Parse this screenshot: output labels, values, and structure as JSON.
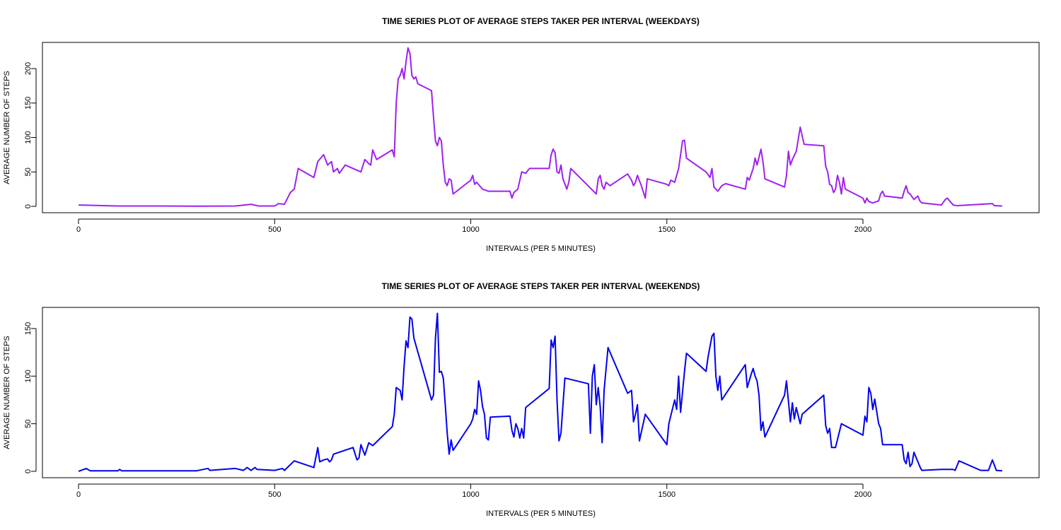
{
  "chart_data": [
    {
      "type": "line",
      "title": "TIME SERIES PLOT OF AVERAGE STEPS TAKER PER INTERVAL (WEEKDAYS)",
      "xlabel": "INTERVALS (PER 5 MINUTES)",
      "ylabel": "AVERAGE NUMBER OF STEPS",
      "color": "#a020f0",
      "x": [
        0,
        100,
        200,
        300,
        400,
        440,
        460,
        500,
        510,
        525,
        540,
        550,
        560,
        600,
        610,
        625,
        635,
        645,
        650,
        660,
        665,
        680,
        700,
        720,
        730,
        740,
        745,
        750,
        760,
        800,
        805,
        810,
        815,
        820,
        825,
        830,
        835,
        840,
        845,
        850,
        855,
        860,
        865,
        900,
        905,
        910,
        915,
        920,
        925,
        930,
        935,
        940,
        945,
        950,
        955,
        1000,
        1005,
        1010,
        1015,
        1030,
        1045,
        1100,
        1105,
        1110,
        1120,
        1130,
        1140,
        1150,
        1200,
        1205,
        1210,
        1215,
        1220,
        1225,
        1230,
        1235,
        1245,
        1250,
        1255,
        1320,
        1325,
        1330,
        1335,
        1340,
        1345,
        1355,
        1400,
        1410,
        1415,
        1420,
        1425,
        1435,
        1445,
        1450,
        1500,
        1505,
        1510,
        1520,
        1530,
        1540,
        1545,
        1550,
        1600,
        1610,
        1615,
        1620,
        1630,
        1640,
        1650,
        1700,
        1705,
        1710,
        1720,
        1725,
        1730,
        1740,
        1745,
        1750,
        1800,
        1805,
        1810,
        1815,
        1820,
        1830,
        1840,
        1850,
        1900,
        1905,
        1910,
        1915,
        1920,
        1925,
        1930,
        1935,
        1940,
        1945,
        1950,
        1955,
        2000,
        2005,
        2010,
        2015,
        2025,
        2040,
        2045,
        2050,
        2055,
        2100,
        2105,
        2110,
        2115,
        2120,
        2130,
        2140,
        2145,
        2150,
        2200,
        2210,
        2215,
        2230,
        2240,
        2300,
        2330,
        2335,
        2355
      ],
      "values": [
        2,
        0.5,
        0.5,
        0.3,
        0.5,
        3,
        0.5,
        0.5,
        4,
        3,
        20,
        25,
        55,
        42,
        65,
        75,
        60,
        65,
        50,
        55,
        48,
        60,
        55,
        50,
        68,
        62,
        60,
        82,
        68,
        82,
        72,
        150,
        185,
        190,
        200,
        185,
        210,
        230,
        222,
        190,
        185,
        188,
        178,
        168,
        130,
        95,
        88,
        100,
        95,
        60,
        35,
        30,
        40,
        38,
        18,
        38,
        45,
        32,
        35,
        25,
        22,
        22,
        12,
        20,
        25,
        50,
        48,
        55,
        55,
        75,
        83,
        78,
        50,
        48,
        60,
        40,
        25,
        35,
        55,
        18,
        40,
        45,
        30,
        25,
        35,
        30,
        47,
        38,
        30,
        35,
        45,
        30,
        12,
        40,
        32,
        30,
        38,
        35,
        55,
        95,
        96,
        70,
        50,
        42,
        55,
        28,
        22,
        30,
        33,
        25,
        42,
        38,
        55,
        70,
        60,
        83,
        65,
        40,
        28,
        45,
        80,
        60,
        68,
        80,
        115,
        90,
        88,
        58,
        50,
        32,
        30,
        20,
        25,
        45,
        35,
        18,
        42,
        25,
        12,
        5,
        12,
        7,
        5,
        8,
        18,
        22,
        15,
        12,
        22,
        30,
        20,
        18,
        10,
        15,
        8,
        5,
        2,
        10,
        12,
        2,
        1,
        3,
        4,
        1,
        0.5
      ],
      "xlim": [
        -92,
        2449
      ],
      "xticks": [
        0,
        500,
        1000,
        1500,
        2000
      ],
      "ylim": [
        -9.2,
        238
      ],
      "yticks": [
        0,
        50,
        100,
        150,
        200
      ]
    },
    {
      "type": "line",
      "title": "TIME SERIES PLOT OF AVERAGE STEPS TAKER PER INTERVAL (WEEKENDS)",
      "xlabel": "INTERVALS (PER 5 MINUTES)",
      "ylabel": "AVERAGE NUMBER OF STEPS",
      "color": "#0000ee",
      "x": [
        0,
        20,
        30,
        100,
        105,
        110,
        200,
        300,
        330,
        335,
        400,
        420,
        430,
        440,
        450,
        455,
        500,
        520,
        525,
        550,
        600,
        610,
        615,
        625,
        635,
        640,
        645,
        650,
        700,
        710,
        715,
        720,
        730,
        740,
        750,
        800,
        805,
        810,
        820,
        825,
        830,
        835,
        840,
        845,
        850,
        855,
        900,
        905,
        910,
        915,
        920,
        925,
        930,
        935,
        940,
        945,
        950,
        955,
        1000,
        1005,
        1010,
        1015,
        1020,
        1025,
        1030,
        1035,
        1040,
        1045,
        1050,
        1100,
        1105,
        1110,
        1115,
        1120,
        1125,
        1130,
        1135,
        1140,
        1200,
        1205,
        1210,
        1215,
        1220,
        1225,
        1230,
        1240,
        1300,
        1305,
        1310,
        1315,
        1320,
        1325,
        1330,
        1335,
        1340,
        1350,
        1400,
        1410,
        1415,
        1420,
        1425,
        1430,
        1445,
        1500,
        1505,
        1520,
        1525,
        1530,
        1535,
        1545,
        1550,
        1600,
        1605,
        1615,
        1620,
        1625,
        1630,
        1635,
        1640,
        1700,
        1705,
        1715,
        1720,
        1725,
        1730,
        1735,
        1740,
        1745,
        1750,
        1800,
        1805,
        1815,
        1820,
        1825,
        1830,
        1840,
        1845,
        1900,
        1905,
        1910,
        1915,
        1920,
        1930,
        1945,
        2000,
        2005,
        2010,
        2015,
        2020,
        2025,
        2030,
        2040,
        2045,
        2050,
        2100,
        2105,
        2110,
        2115,
        2120,
        2125,
        2130,
        2145,
        2150,
        2200,
        2230,
        2235,
        2245,
        2300,
        2320,
        2330,
        2340,
        2355
      ],
      "values": [
        0,
        3,
        0.5,
        0.5,
        2,
        0.5,
        0.5,
        0.5,
        3,
        1,
        3,
        1,
        4,
        1,
        4,
        2,
        1,
        3,
        1,
        11,
        4,
        25,
        10,
        12,
        13,
        10,
        12,
        18,
        25,
        12,
        14,
        28,
        17,
        30,
        27,
        47,
        60,
        88,
        85,
        75,
        110,
        137,
        130,
        162,
        160,
        140,
        75,
        80,
        140,
        166,
        104,
        105,
        98,
        70,
        40,
        18,
        33,
        22,
        50,
        55,
        65,
        60,
        95,
        85,
        68,
        60,
        35,
        33,
        57,
        58,
        43,
        36,
        50,
        45,
        35,
        45,
        35,
        67,
        87,
        138,
        130,
        142,
        75,
        32,
        40,
        98,
        92,
        40,
        100,
        112,
        70,
        88,
        68,
        30,
        85,
        130,
        82,
        85,
        52,
        60,
        70,
        32,
        60,
        28,
        50,
        75,
        65,
        100,
        62,
        105,
        124,
        105,
        120,
        142,
        145,
        100,
        85,
        100,
        75,
        112,
        88,
        102,
        108,
        100,
        95,
        80,
        43,
        52,
        36,
        80,
        95,
        52,
        72,
        55,
        67,
        50,
        60,
        80,
        48,
        40,
        45,
        25,
        25,
        50,
        38,
        58,
        52,
        88,
        82,
        65,
        76,
        50,
        45,
        28,
        28,
        12,
        8,
        20,
        5,
        8,
        20,
        5,
        1,
        2,
        2,
        1,
        11,
        1,
        1,
        12,
        1,
        0.5
      ],
      "xlim": [
        -92,
        2449
      ],
      "xticks": [
        0,
        500,
        1000,
        1500,
        2000
      ],
      "ylim": [
        -6.7,
        172.2
      ],
      "yticks": [
        0,
        50,
        100,
        150
      ]
    }
  ]
}
